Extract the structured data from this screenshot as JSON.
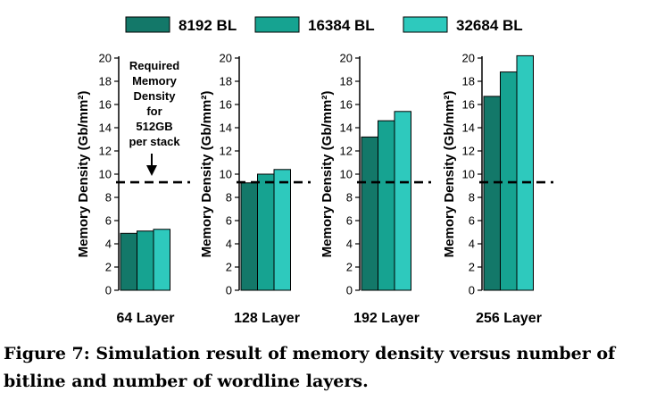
{
  "chart_data": {
    "type": "bar",
    "ylabel": "Memory Density (Gb/mm²)",
    "ylim": [
      0,
      20
    ],
    "yticks": [
      "0",
      "2",
      "4",
      "6",
      "8",
      "10",
      "12",
      "14",
      "16",
      "18",
      "20"
    ],
    "reference_line": {
      "value": 9.3,
      "style": "dashed"
    },
    "annotation": [
      "Required",
      "Memory",
      "Density",
      "for",
      "512GB",
      "per stack"
    ],
    "legend": {
      "position": "top",
      "items": [
        {
          "name": "8192 BL",
          "color": "#137869"
        },
        {
          "name": "16384 BL",
          "color": "#16A391"
        },
        {
          "name": "32684 BL",
          "color": "#2EC9BD"
        }
      ]
    },
    "panels": [
      {
        "xlabel": "64 Layer",
        "values": [
          4.9,
          5.1,
          5.25
        ]
      },
      {
        "xlabel": "128 Layer",
        "values": [
          9.25,
          10.0,
          10.4
        ]
      },
      {
        "xlabel": "192 Layer",
        "values": [
          13.2,
          14.6,
          15.4
        ]
      },
      {
        "xlabel": "256 Layer",
        "values": [
          16.7,
          18.8,
          20.2
        ]
      }
    ]
  },
  "caption": "Figure 7: Simulation result of memory density versus number of bitline and number of wordline layers."
}
